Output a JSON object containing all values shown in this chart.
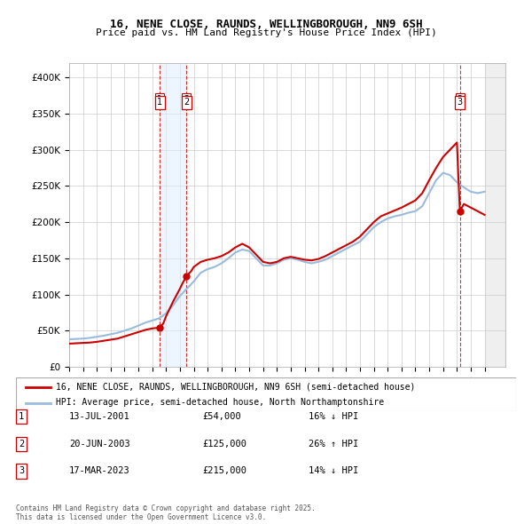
{
  "title": "16, NENE CLOSE, RAUNDS, WELLINGBOROUGH, NN9 6SH",
  "subtitle": "Price paid vs. HM Land Registry's House Price Index (HPI)",
  "legend_line1": "16, NENE CLOSE, RAUNDS, WELLINGBOROUGH, NN9 6SH (semi-detached house)",
  "legend_line2": "HPI: Average price, semi-detached house, North Northamptonshire",
  "footer": "Contains HM Land Registry data © Crown copyright and database right 2025.\nThis data is licensed under the Open Government Licence v3.0.",
  "transactions": [
    {
      "label": "1",
      "date": "2001-07-13",
      "x_year": 2001.535,
      "price": 54000
    },
    {
      "label": "2",
      "date": "2003-06-20",
      "x_year": 2003.47,
      "price": 125000
    },
    {
      "label": "3",
      "date": "2023-03-17",
      "x_year": 2023.21,
      "price": 215000
    }
  ],
  "table_rows": [
    {
      "num": "1",
      "date": "13-JUL-2001",
      "price": "£54,000",
      "note": "16% ↓ HPI"
    },
    {
      "num": "2",
      "date": "20-JUN-2003",
      "price": "£125,000",
      "note": "26% ↑ HPI"
    },
    {
      "num": "3",
      "date": "17-MAR-2023",
      "price": "£215,000",
      "note": "14% ↓ HPI"
    }
  ],
  "price_color": "#cc0000",
  "hpi_color": "#6699cc",
  "hpi_line_color": "#99bbdd",
  "shaded_region_color": "#ddeeff",
  "hatch_color": "#cccccc",
  "ylim": [
    0,
    420000
  ],
  "xlim_start": 1995,
  "xlim_end": 2026.5,
  "hpi_data": {
    "years": [
      1995,
      1995.5,
      1996,
      1996.5,
      1997,
      1997.5,
      1998,
      1998.5,
      1999,
      1999.5,
      2000,
      2000.5,
      2001,
      2001.5,
      2002,
      2002.5,
      2003,
      2003.5,
      2004,
      2004.5,
      2005,
      2005.5,
      2006,
      2006.5,
      2007,
      2007.5,
      2008,
      2008.5,
      2009,
      2009.5,
      2010,
      2010.5,
      2011,
      2011.5,
      2012,
      2012.5,
      2013,
      2013.5,
      2014,
      2014.5,
      2015,
      2015.5,
      2016,
      2016.5,
      2017,
      2017.5,
      2018,
      2018.5,
      2019,
      2019.5,
      2020,
      2020.5,
      2021,
      2021.5,
      2022,
      2022.5,
      2023,
      2023.5,
      2024,
      2024.5,
      2025
    ],
    "values": [
      38000,
      38500,
      39000,
      40000,
      41500,
      43000,
      45000,
      47000,
      50000,
      53000,
      57000,
      61000,
      64000,
      67000,
      74000,
      85000,
      98000,
      108000,
      118000,
      130000,
      135000,
      138000,
      143000,
      150000,
      158000,
      162000,
      160000,
      150000,
      140000,
      140000,
      143000,
      148000,
      150000,
      148000,
      145000,
      143000,
      145000,
      148000,
      153000,
      158000,
      163000,
      168000,
      173000,
      183000,
      193000,
      200000,
      205000,
      208000,
      210000,
      213000,
      215000,
      222000,
      240000,
      258000,
      268000,
      265000,
      255000,
      248000,
      242000,
      240000,
      242000
    ]
  },
  "price_paid_data": {
    "years": [
      1995,
      1995.5,
      1996,
      1996.5,
      1997,
      1997.5,
      1998,
      1998.5,
      1999,
      1999.5,
      2000,
      2000.5,
      2001,
      2001.2,
      2001.535,
      2001.8,
      2002,
      2002.5,
      2003,
      2003.2,
      2003.47,
      2003.8,
      2004,
      2004.5,
      2005,
      2005.5,
      2006,
      2006.5,
      2007,
      2007.5,
      2008,
      2008.5,
      2009,
      2009.5,
      2010,
      2010.5,
      2011,
      2011.5,
      2012,
      2012.5,
      2013,
      2013.5,
      2014,
      2014.5,
      2015,
      2015.5,
      2016,
      2016.5,
      2017,
      2017.5,
      2018,
      2018.5,
      2019,
      2019.5,
      2020,
      2020.5,
      2021,
      2021.5,
      2022,
      2022.5,
      2023,
      2023.21,
      2023.5,
      2024,
      2024.5,
      2025
    ],
    "values": [
      32000,
      32500,
      33000,
      33500,
      34500,
      36000,
      37500,
      39000,
      42000,
      45000,
      48000,
      51000,
      53000,
      53500,
      54000,
      60000,
      70000,
      90000,
      108000,
      116000,
      125000,
      132000,
      138000,
      145000,
      148000,
      150000,
      153000,
      158000,
      165000,
      170000,
      165000,
      155000,
      145000,
      143000,
      145000,
      150000,
      152000,
      150000,
      148000,
      147000,
      149000,
      153000,
      158000,
      163000,
      168000,
      173000,
      180000,
      190000,
      200000,
      208000,
      212000,
      216000,
      220000,
      225000,
      230000,
      240000,
      258000,
      275000,
      290000,
      300000,
      310000,
      215000,
      225000,
      220000,
      215000,
      210000
    ]
  }
}
